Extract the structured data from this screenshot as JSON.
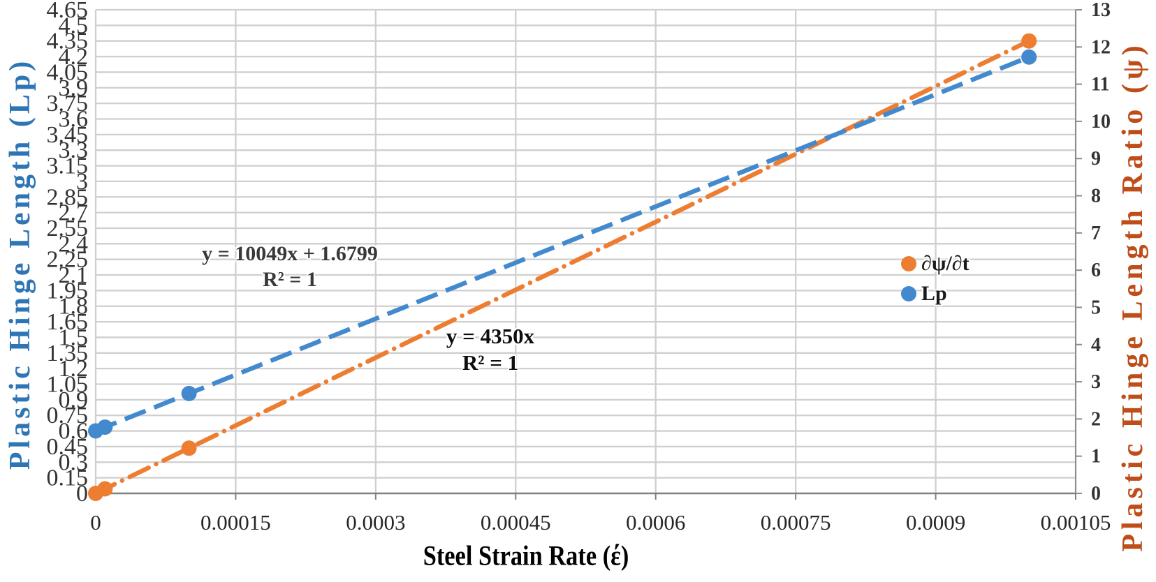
{
  "chart_data": {
    "type": "scatter",
    "xlabel": "Steel Strain Rate (έ)",
    "x_ticks": [
      "0",
      "0.00015",
      "0.0003",
      "0.00045",
      "0.0006",
      "0.00075",
      "0.0009",
      "0.00105"
    ],
    "x_range": [
      0,
      0.00105
    ],
    "grid": true,
    "y_left": {
      "label": "Plastic Hinge Length (Lp)",
      "title_color": "#2E75B6",
      "range": [
        0,
        4.65
      ],
      "tick_step": 0.15,
      "ticks": [
        "4.65",
        "4.5",
        "4.35",
        "4.2",
        "4.05",
        "3.9",
        "3.75",
        "3.6",
        "3.45",
        "3.3",
        "3.15",
        "3",
        "2.85",
        "2.7",
        "2.55",
        "2.4",
        "2.25",
        "2.1",
        "1.95",
        "1.8",
        "1.65",
        "1.5",
        "1.35",
        "1.2",
        "1.05",
        "0.9",
        "0.75",
        "0.6",
        "0.45",
        "0.3",
        "0.15",
        "0"
      ]
    },
    "y_right": {
      "label": "Plastic Hinge Length Ratio (ψ)",
      "title_color": "#BF4D18",
      "range": [
        0,
        13
      ],
      "tick_step": 1,
      "ticks": [
        "13",
        "12",
        "11",
        "10",
        "9",
        "8",
        "7",
        "6",
        "5",
        "4",
        "3",
        "2",
        "1",
        "0"
      ]
    },
    "series": [
      {
        "name": "∂ψ/∂t",
        "color": "#ED7D31",
        "marker": "circle",
        "line_style": "dash-dot",
        "value_axis": "left",
        "x": [
          0,
          1e-05,
          0.0001,
          0.001
        ],
        "y": [
          0,
          0.0435,
          0.435,
          4.35
        ],
        "trendline": {
          "equation": "y = 4350x",
          "r2": "R² = 1"
        }
      },
      {
        "name": "Lp",
        "color": "#4289CE",
        "marker": "circle",
        "line_style": "dash",
        "value_axis": "right",
        "x": [
          0,
          1e-05,
          0.0001,
          0.001
        ],
        "y": [
          1.6799,
          1.7804,
          2.6848,
          11.7289
        ],
        "trendline": {
          "equation": "y = 10049x + 1.6799",
          "r2": "R² = 1"
        }
      }
    ],
    "annotations": [
      {
        "line1": "y = 10049x + 1.6799",
        "line2": "R² = 1"
      },
      {
        "line1": "y = 4350x",
        "line2": "R² = 1"
      }
    ],
    "legend": {
      "items": [
        {
          "label": "∂ψ/∂t",
          "color": "#ED7D31"
        },
        {
          "label": "Lp",
          "color": "#4289CE"
        }
      ]
    }
  }
}
